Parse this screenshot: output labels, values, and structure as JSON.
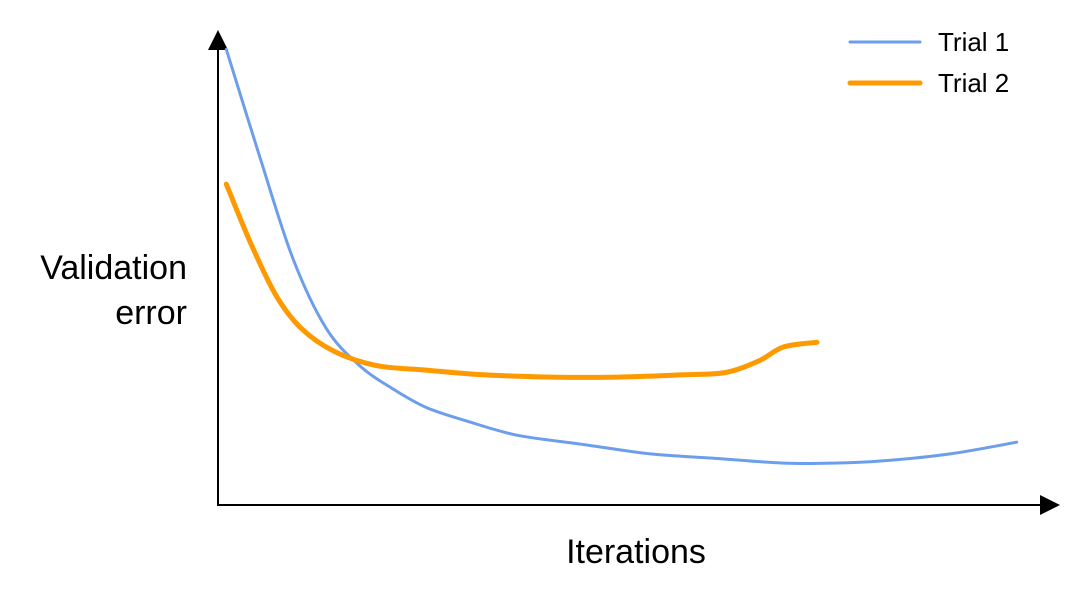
{
  "chart_data": {
    "type": "line",
    "title": "",
    "xlabel": "Iterations",
    "ylabel_lines": [
      "Validation",
      "error"
    ],
    "xlim": [
      0,
      100
    ],
    "ylim": [
      0,
      100
    ],
    "grid": false,
    "ticks": false,
    "legend_position": "top-right",
    "series": [
      {
        "name": "Trial 1",
        "color": "#6d9eeb",
        "points": [
          [
            1,
            98
          ],
          [
            5,
            75
          ],
          [
            9,
            53
          ],
          [
            13,
            38
          ],
          [
            17,
            30
          ],
          [
            21,
            25
          ],
          [
            25,
            21
          ],
          [
            30,
            18
          ],
          [
            36,
            15
          ],
          [
            44,
            13
          ],
          [
            52,
            11
          ],
          [
            60,
            10
          ],
          [
            68,
            9
          ],
          [
            74,
            9
          ],
          [
            80,
            9.5
          ],
          [
            88,
            11
          ],
          [
            96,
            13.5
          ]
        ]
      },
      {
        "name": "Trial 2",
        "color": "#ff9900",
        "points": [
          [
            1,
            69
          ],
          [
            4,
            56
          ],
          [
            7,
            45
          ],
          [
            10,
            38
          ],
          [
            14,
            33
          ],
          [
            19,
            30
          ],
          [
            25,
            29
          ],
          [
            32,
            28
          ],
          [
            40,
            27.5
          ],
          [
            48,
            27.5
          ],
          [
            56,
            28
          ],
          [
            61,
            28.5
          ],
          [
            65,
            31
          ],
          [
            68,
            34
          ],
          [
            72,
            35
          ]
        ]
      }
    ]
  }
}
